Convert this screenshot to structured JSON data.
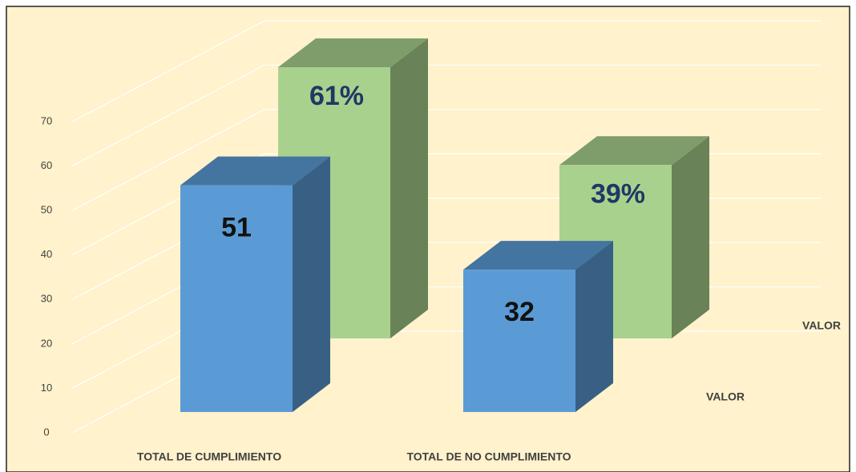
{
  "chart_data": {
    "type": "bar3d",
    "categories": [
      "TOTAL DE CUMPLIMIENTO",
      "TOTAL DE NO CUMPLIMIENTO"
    ],
    "series": [
      {
        "name": "VALOR",
        "color": "#5b9bd5",
        "values": [
          51,
          32
        ]
      },
      {
        "name": "VALOR",
        "color": "#a9d18e",
        "values": [
          61,
          39
        ],
        "value_labels": [
          "61%",
          "39%"
        ]
      }
    ],
    "ylim": [
      0,
      70
    ],
    "yticks": [
      0,
      10,
      20,
      30,
      40,
      50,
      60,
      70
    ],
    "grid": true
  }
}
